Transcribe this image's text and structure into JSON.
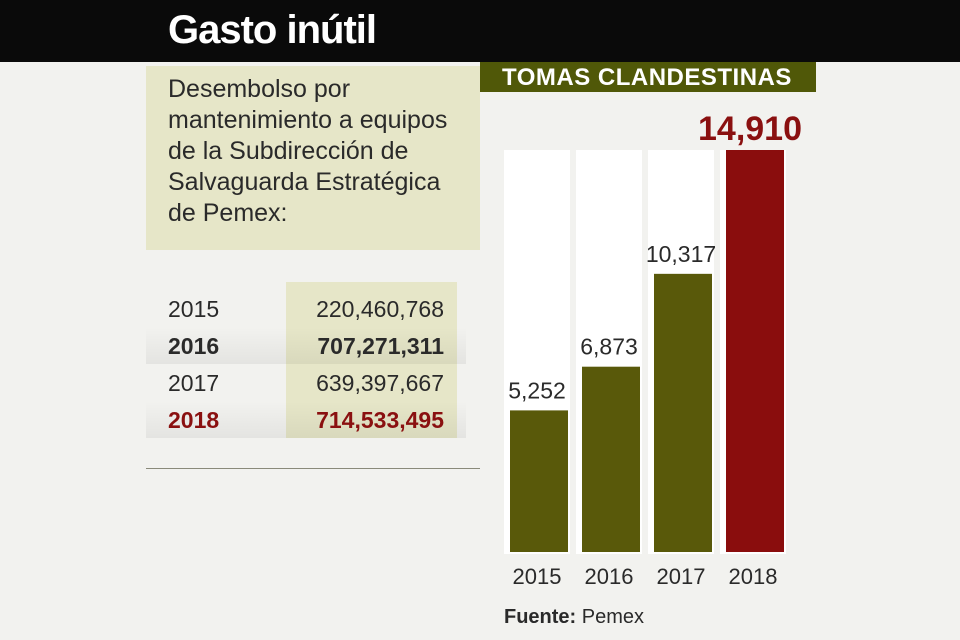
{
  "header": {
    "title": "Gasto inútil"
  },
  "description": "Desembolso por mantenimiento a equipos de la Subdirección de Salvaguarda Estratégica de Pemex:",
  "table": {
    "rows": [
      {
        "year": "2015",
        "value": "220,460,768",
        "bold": false,
        "highlight": false
      },
      {
        "year": "2016",
        "value": "707,271,311",
        "bold": true,
        "highlight": false
      },
      {
        "year": "2017",
        "value": "639,397,667",
        "bold": false,
        "highlight": false
      },
      {
        "year": "2018",
        "value": "714,533,495",
        "bold": true,
        "highlight": true
      }
    ]
  },
  "chart_data": {
    "type": "bar",
    "title": "TOMAS CLANDESTINAS",
    "categories": [
      "2015",
      "2016",
      "2017",
      "2018"
    ],
    "values": [
      5252,
      6873,
      10317,
      14910
    ],
    "value_labels": [
      "5,252",
      "6,873",
      "10,317",
      "14,910"
    ],
    "xlabel": "",
    "ylabel": "",
    "ylim": [
      0,
      14910
    ],
    "grid": false,
    "colors": {
      "bar": "#59590a",
      "highlight_bar": "#8a0d0d",
      "highlight_label": "#8a1010",
      "column_bg": "#ffffff"
    },
    "highlight_index": 3
  },
  "source": {
    "label": "Fuente:",
    "value": "Pemex"
  },
  "colors": {
    "header_bg": "#0a0a0a",
    "panel_bg": "#e6e6c8",
    "chart_header_bg": "#505808",
    "accent_red": "#8a1010"
  }
}
